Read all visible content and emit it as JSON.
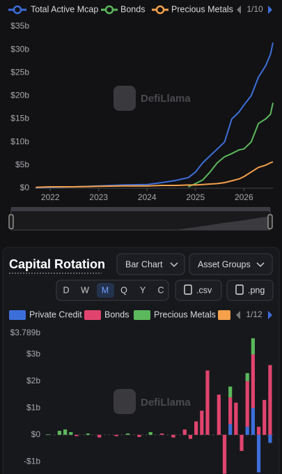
{
  "watermark": "DefiLlama",
  "legend_pager": "1/10",
  "section": {
    "title": "Capital Rotation",
    "chart_type_select": "Bar Chart",
    "group_select": "Asset Groups",
    "periods": [
      "D",
      "W",
      "M",
      "Q",
      "Y",
      "C"
    ],
    "downloads": [
      ".csv",
      ".png"
    ],
    "legend_pager": "1/12"
  },
  "chart_data": [
    {
      "type": "line",
      "x": [
        2021.7,
        2022,
        2022.5,
        2023,
        2023.5,
        2024,
        2024.3,
        2024.6,
        2024.85,
        2025,
        2025.15,
        2025.3,
        2025.45,
        2025.6,
        2025.75,
        2025.9,
        2026,
        2026.15,
        2026.3,
        2026.45,
        2026.55,
        2026.6
      ],
      "series": [
        {
          "name": "Total Active Mcap",
          "color": "#3d6fdb",
          "values": [
            0.1,
            0.2,
            0.3,
            0.5,
            0.7,
            0.8,
            1.2,
            1.7,
            2.3,
            3.5,
            5.5,
            7,
            8.5,
            10,
            15,
            16.5,
            18,
            20,
            24,
            26.5,
            29,
            31.5
          ]
        },
        {
          "name": "Bonds",
          "color": "#5cb85c",
          "values": [
            null,
            null,
            null,
            null,
            null,
            null,
            null,
            null,
            0.3,
            1.0,
            1.8,
            3.5,
            5.5,
            6.8,
            7.5,
            8.3,
            8.5,
            10,
            14,
            15,
            16,
            18.5
          ]
        },
        {
          "name": "Precious Metals",
          "color": "#f5a04a",
          "values": [
            0.2,
            0.3,
            0.3,
            0.4,
            0.5,
            0.5,
            0.6,
            0.6,
            0.7,
            0.7,
            0.8,
            0.9,
            1.0,
            1.2,
            1.6,
            2.0,
            2.5,
            3.5,
            4.5,
            5.0,
            5.5,
            5.7
          ]
        }
      ],
      "xlim": [
        2021.68,
        2026.6
      ],
      "xticks": [
        2022,
        2023,
        2024,
        2025,
        2026
      ],
      "ylim": [
        0,
        35
      ],
      "yticks": [
        {
          "value": 0,
          "label": "$0"
        },
        {
          "value": 5,
          "label": "$5b"
        },
        {
          "value": 10,
          "label": "$10b"
        },
        {
          "value": 15,
          "label": "$15b"
        },
        {
          "value": 20,
          "label": "$20b"
        },
        {
          "value": 25,
          "label": "$25b"
        },
        {
          "value": 30,
          "label": "$30b"
        },
        {
          "value": 35,
          "label": "$35b"
        }
      ],
      "grid": false
    },
    {
      "type": "bar",
      "categories": [
        null,
        null,
        null,
        null,
        null,
        null,
        null,
        null,
        null,
        null,
        null,
        null,
        null,
        null,
        null,
        null,
        null,
        null,
        null,
        null,
        null,
        null,
        null,
        null,
        null,
        null,
        null,
        null,
        null,
        null,
        null,
        null,
        null,
        null,
        null,
        null,
        null,
        null,
        null,
        null
      ],
      "series": [
        {
          "name": "Private Credit",
          "color": "#3d6fdb",
          "values": [
            0,
            0,
            0,
            0,
            0,
            0,
            0,
            0,
            0,
            0,
            0,
            0,
            0,
            0,
            0,
            0,
            0,
            0,
            0,
            0,
            0,
            0,
            0,
            0,
            0,
            0,
            0,
            0,
            0,
            0,
            0,
            0,
            0.4,
            0,
            0,
            0.3,
            1.0,
            -1.4,
            0,
            -0.3
          ]
        },
        {
          "name": "Bonds",
          "color": "#e0446e",
          "values": [
            0,
            0,
            0,
            0,
            0,
            -0.05,
            0,
            0,
            0,
            -0.1,
            0,
            0,
            -0.05,
            0,
            0,
            0,
            -0.08,
            0,
            0,
            0,
            0.05,
            0,
            -0.1,
            0,
            0.2,
            -0.15,
            0.5,
            0.9,
            2.4,
            0,
            1.5,
            -1.45,
            1.0,
            1.2,
            -0.6,
            1.7,
            2.0,
            0.3,
            1.3,
            2.6
          ]
        },
        {
          "name": "Precious Metals",
          "color": "#5cb85c",
          "values": [
            0.02,
            0,
            0.15,
            0.2,
            0.1,
            0,
            0,
            0.05,
            0,
            0,
            0,
            0,
            0,
            0,
            0.05,
            0,
            0,
            0,
            0.1,
            0,
            0,
            0,
            0,
            0,
            0,
            0,
            0,
            0,
            0,
            0,
            0,
            0,
            0.4,
            0,
            0,
            0.3,
            0.6,
            0,
            0,
            0
          ]
        }
      ],
      "ylim": [
        -1.46,
        3.789
      ],
      "yticks": [
        {
          "value": 3.789,
          "label": "$3.789b"
        },
        {
          "value": 3,
          "label": "$3b"
        },
        {
          "value": 2,
          "label": "$2b"
        },
        {
          "value": 1,
          "label": "$1b"
        },
        {
          "value": 0,
          "label": "$0"
        },
        {
          "value": -1,
          "label": "-$1b"
        }
      ],
      "grid": false
    }
  ]
}
